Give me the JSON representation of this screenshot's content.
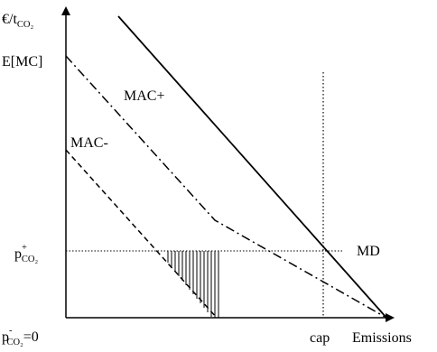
{
  "axes": {
    "y_label": {
      "main": "€/t",
      "sub": "CO₂"
    },
    "x_label": "Emissions"
  },
  "y_ticks": {
    "expected_mc": "E[MC]",
    "p_plus": {
      "main": "p",
      "sup": "+",
      "sub": "CO₂"
    },
    "p_minus": {
      "main": "p",
      "sup": "-",
      "sub": "CO₂",
      "suffix": "=0"
    }
  },
  "x_ticks": {
    "cap": "cap"
  },
  "curves": {
    "mac_plus": "MAC+",
    "mac_minus": "MAC-",
    "md": "MD"
  }
}
